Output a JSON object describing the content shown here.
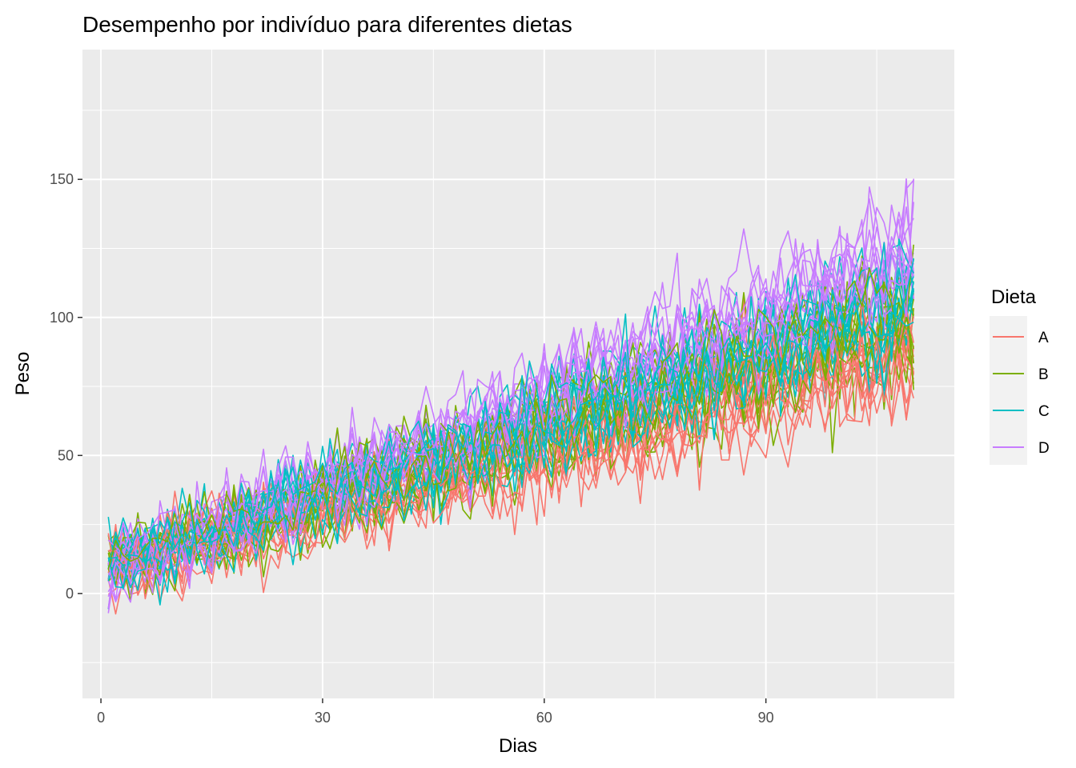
{
  "chart_data": {
    "type": "line",
    "title": "Desempenho por indivíduo para diferentes dietas",
    "xlabel": "Dias",
    "ylabel": "Peso",
    "xlim": [
      -2.5,
      115.5
    ],
    "ylim": [
      -38,
      197
    ],
    "x_ticks": [
      0,
      30,
      60,
      90
    ],
    "x_tick_labels": [
      "0",
      "30",
      "60",
      "90"
    ],
    "y_ticks": [
      0,
      50,
      100,
      150
    ],
    "y_tick_labels": [
      "0",
      "50",
      "100",
      "150"
    ],
    "x_range_of_data": [
      1,
      110
    ],
    "grid": true,
    "legend": {
      "title": "Dieta",
      "placement": "right",
      "entries": [
        "A",
        "B",
        "C",
        "D"
      ]
    },
    "series": [
      {
        "name": "A",
        "color": "#F8766D",
        "individuals": 12,
        "trend": {
          "x": [
            1,
            110
          ],
          "y": [
            8,
            85
          ]
        }
      },
      {
        "name": "B",
        "color": "#7CAE00",
        "individuals": 12,
        "trend": {
          "x": [
            1,
            110
          ],
          "y": [
            9,
            98
          ]
        }
      },
      {
        "name": "C",
        "color": "#00BFC4",
        "individuals": 12,
        "trend": {
          "x": [
            1,
            110
          ],
          "y": [
            10,
            105
          ]
        }
      },
      {
        "name": "D",
        "color": "#C77CFF",
        "individuals": 12,
        "trend": {
          "x": [
            1,
            110
          ],
          "y": [
            10,
            125
          ]
        }
      }
    ]
  }
}
